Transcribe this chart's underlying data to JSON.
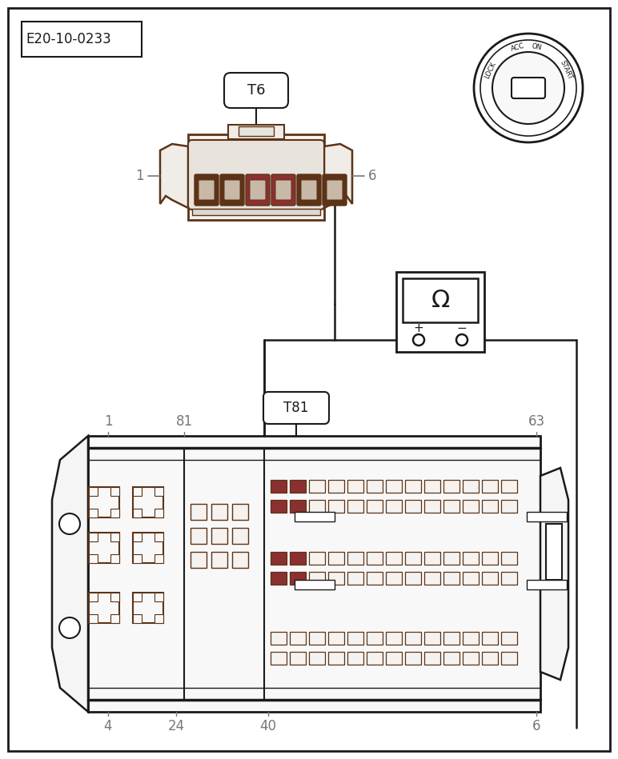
{
  "bg_color": "#ffffff",
  "line_color": "#1a1a1a",
  "dark_brown": "#5c3317",
  "connector_color": "#5c3317",
  "red_pin_color": "#8b3030",
  "gray_label": "#777777",
  "label_id": "E20-10-0233",
  "t6_label": "T6",
  "t81_label": "T81",
  "fig_w": 7.72,
  "fig_h": 9.49,
  "dpi": 100
}
